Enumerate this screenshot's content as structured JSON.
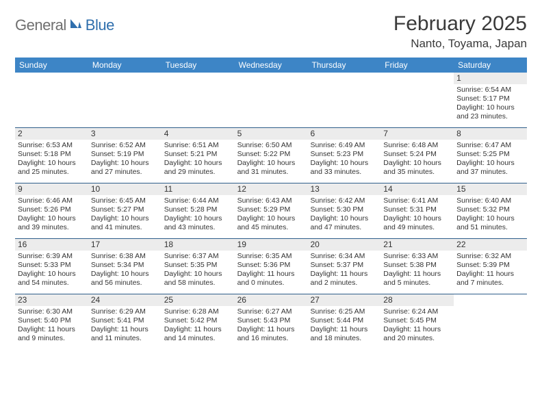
{
  "logo": {
    "general": "General",
    "blue": "Blue"
  },
  "title": "February 2025",
  "location": "Nanto, Toyama, Japan",
  "colors": {
    "header_bg": "#3d85c6",
    "header_text": "#ffffff",
    "week_divider": "#2d5d8a",
    "daynum_bg": "#ececec",
    "body_text": "#333333",
    "logo_gray": "#6f6f6f",
    "logo_blue": "#2f6fad"
  },
  "weekdays": [
    "Sunday",
    "Monday",
    "Tuesday",
    "Wednesday",
    "Thursday",
    "Friday",
    "Saturday"
  ],
  "weeks": [
    [
      {
        "n": "",
        "sr": "",
        "ss": "",
        "d1": "",
        "d2": ""
      },
      {
        "n": "",
        "sr": "",
        "ss": "",
        "d1": "",
        "d2": ""
      },
      {
        "n": "",
        "sr": "",
        "ss": "",
        "d1": "",
        "d2": ""
      },
      {
        "n": "",
        "sr": "",
        "ss": "",
        "d1": "",
        "d2": ""
      },
      {
        "n": "",
        "sr": "",
        "ss": "",
        "d1": "",
        "d2": ""
      },
      {
        "n": "",
        "sr": "",
        "ss": "",
        "d1": "",
        "d2": ""
      },
      {
        "n": "1",
        "sr": "Sunrise: 6:54 AM",
        "ss": "Sunset: 5:17 PM",
        "d1": "Daylight: 10 hours",
        "d2": "and 23 minutes."
      }
    ],
    [
      {
        "n": "2",
        "sr": "Sunrise: 6:53 AM",
        "ss": "Sunset: 5:18 PM",
        "d1": "Daylight: 10 hours",
        "d2": "and 25 minutes."
      },
      {
        "n": "3",
        "sr": "Sunrise: 6:52 AM",
        "ss": "Sunset: 5:19 PM",
        "d1": "Daylight: 10 hours",
        "d2": "and 27 minutes."
      },
      {
        "n": "4",
        "sr": "Sunrise: 6:51 AM",
        "ss": "Sunset: 5:21 PM",
        "d1": "Daylight: 10 hours",
        "d2": "and 29 minutes."
      },
      {
        "n": "5",
        "sr": "Sunrise: 6:50 AM",
        "ss": "Sunset: 5:22 PM",
        "d1": "Daylight: 10 hours",
        "d2": "and 31 minutes."
      },
      {
        "n": "6",
        "sr": "Sunrise: 6:49 AM",
        "ss": "Sunset: 5:23 PM",
        "d1": "Daylight: 10 hours",
        "d2": "and 33 minutes."
      },
      {
        "n": "7",
        "sr": "Sunrise: 6:48 AM",
        "ss": "Sunset: 5:24 PM",
        "d1": "Daylight: 10 hours",
        "d2": "and 35 minutes."
      },
      {
        "n": "8",
        "sr": "Sunrise: 6:47 AM",
        "ss": "Sunset: 5:25 PM",
        "d1": "Daylight: 10 hours",
        "d2": "and 37 minutes."
      }
    ],
    [
      {
        "n": "9",
        "sr": "Sunrise: 6:46 AM",
        "ss": "Sunset: 5:26 PM",
        "d1": "Daylight: 10 hours",
        "d2": "and 39 minutes."
      },
      {
        "n": "10",
        "sr": "Sunrise: 6:45 AM",
        "ss": "Sunset: 5:27 PM",
        "d1": "Daylight: 10 hours",
        "d2": "and 41 minutes."
      },
      {
        "n": "11",
        "sr": "Sunrise: 6:44 AM",
        "ss": "Sunset: 5:28 PM",
        "d1": "Daylight: 10 hours",
        "d2": "and 43 minutes."
      },
      {
        "n": "12",
        "sr": "Sunrise: 6:43 AM",
        "ss": "Sunset: 5:29 PM",
        "d1": "Daylight: 10 hours",
        "d2": "and 45 minutes."
      },
      {
        "n": "13",
        "sr": "Sunrise: 6:42 AM",
        "ss": "Sunset: 5:30 PM",
        "d1": "Daylight: 10 hours",
        "d2": "and 47 minutes."
      },
      {
        "n": "14",
        "sr": "Sunrise: 6:41 AM",
        "ss": "Sunset: 5:31 PM",
        "d1": "Daylight: 10 hours",
        "d2": "and 49 minutes."
      },
      {
        "n": "15",
        "sr": "Sunrise: 6:40 AM",
        "ss": "Sunset: 5:32 PM",
        "d1": "Daylight: 10 hours",
        "d2": "and 51 minutes."
      }
    ],
    [
      {
        "n": "16",
        "sr": "Sunrise: 6:39 AM",
        "ss": "Sunset: 5:33 PM",
        "d1": "Daylight: 10 hours",
        "d2": "and 54 minutes."
      },
      {
        "n": "17",
        "sr": "Sunrise: 6:38 AM",
        "ss": "Sunset: 5:34 PM",
        "d1": "Daylight: 10 hours",
        "d2": "and 56 minutes."
      },
      {
        "n": "18",
        "sr": "Sunrise: 6:37 AM",
        "ss": "Sunset: 5:35 PM",
        "d1": "Daylight: 10 hours",
        "d2": "and 58 minutes."
      },
      {
        "n": "19",
        "sr": "Sunrise: 6:35 AM",
        "ss": "Sunset: 5:36 PM",
        "d1": "Daylight: 11 hours",
        "d2": "and 0 minutes."
      },
      {
        "n": "20",
        "sr": "Sunrise: 6:34 AM",
        "ss": "Sunset: 5:37 PM",
        "d1": "Daylight: 11 hours",
        "d2": "and 2 minutes."
      },
      {
        "n": "21",
        "sr": "Sunrise: 6:33 AM",
        "ss": "Sunset: 5:38 PM",
        "d1": "Daylight: 11 hours",
        "d2": "and 5 minutes."
      },
      {
        "n": "22",
        "sr": "Sunrise: 6:32 AM",
        "ss": "Sunset: 5:39 PM",
        "d1": "Daylight: 11 hours",
        "d2": "and 7 minutes."
      }
    ],
    [
      {
        "n": "23",
        "sr": "Sunrise: 6:30 AM",
        "ss": "Sunset: 5:40 PM",
        "d1": "Daylight: 11 hours",
        "d2": "and 9 minutes."
      },
      {
        "n": "24",
        "sr": "Sunrise: 6:29 AM",
        "ss": "Sunset: 5:41 PM",
        "d1": "Daylight: 11 hours",
        "d2": "and 11 minutes."
      },
      {
        "n": "25",
        "sr": "Sunrise: 6:28 AM",
        "ss": "Sunset: 5:42 PM",
        "d1": "Daylight: 11 hours",
        "d2": "and 14 minutes."
      },
      {
        "n": "26",
        "sr": "Sunrise: 6:27 AM",
        "ss": "Sunset: 5:43 PM",
        "d1": "Daylight: 11 hours",
        "d2": "and 16 minutes."
      },
      {
        "n": "27",
        "sr": "Sunrise: 6:25 AM",
        "ss": "Sunset: 5:44 PM",
        "d1": "Daylight: 11 hours",
        "d2": "and 18 minutes."
      },
      {
        "n": "28",
        "sr": "Sunrise: 6:24 AM",
        "ss": "Sunset: 5:45 PM",
        "d1": "Daylight: 11 hours",
        "d2": "and 20 minutes."
      },
      {
        "n": "",
        "sr": "",
        "ss": "",
        "d1": "",
        "d2": ""
      }
    ]
  ]
}
